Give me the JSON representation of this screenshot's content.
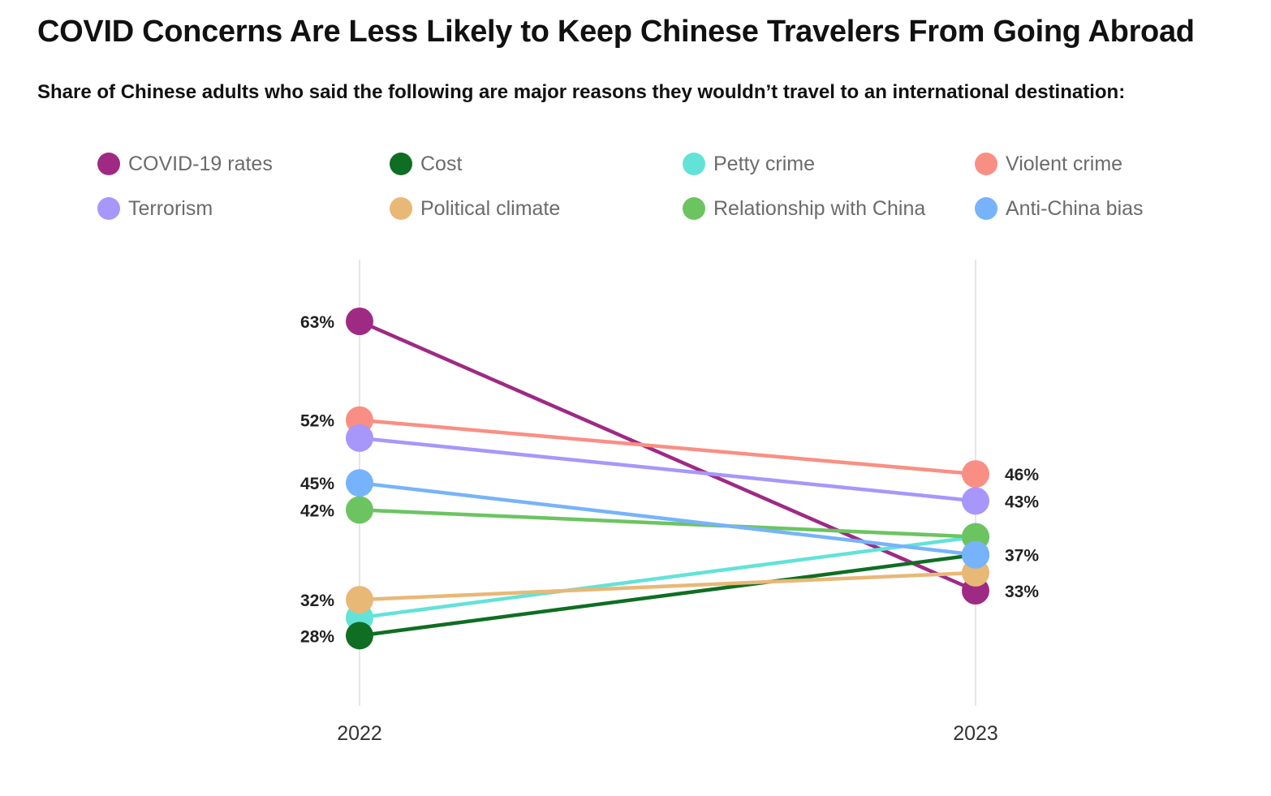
{
  "title": "COVID Concerns Are Less Likely to Keep Chinese Travelers From Going Abroad",
  "subtitle": "Share of Chinese adults who said the following are major reasons they wouldn’t travel to an international destination:",
  "chart_data": {
    "type": "line",
    "x": [
      "2022",
      "2023"
    ],
    "ylim": [
      20,
      68
    ],
    "series": [
      {
        "name": "COVID-19 rates",
        "color": "#9e2a83",
        "values": [
          63,
          33
        ],
        "labels": [
          "63%",
          "33%"
        ]
      },
      {
        "name": "Cost",
        "color": "#0f6e23",
        "values": [
          28,
          37
        ],
        "labels": [
          "28%",
          ""
        ]
      },
      {
        "name": "Petty crime",
        "color": "#63e2d8",
        "values": [
          30,
          39
        ],
        "labels": [
          "",
          ""
        ]
      },
      {
        "name": "Violent crime",
        "color": "#f98f84",
        "values": [
          52,
          46
        ],
        "labels": [
          "52%",
          "46%"
        ]
      },
      {
        "name": "Terrorism",
        "color": "#a797fa",
        "values": [
          50,
          43
        ],
        "labels": [
          "",
          "43%"
        ]
      },
      {
        "name": "Political climate",
        "color": "#e8b876",
        "values": [
          32,
          35
        ],
        "labels": [
          "32%",
          ""
        ]
      },
      {
        "name": "Relationship with China",
        "color": "#6cc461",
        "values": [
          42,
          39
        ],
        "labels": [
          "42%",
          ""
        ]
      },
      {
        "name": "Anti-China bias",
        "color": "#77b3fa",
        "values": [
          45,
          37
        ],
        "labels": [
          "45%",
          "37%"
        ]
      }
    ],
    "draw_order": [
      0,
      2,
      1,
      3,
      4,
      5,
      6,
      7
    ]
  }
}
